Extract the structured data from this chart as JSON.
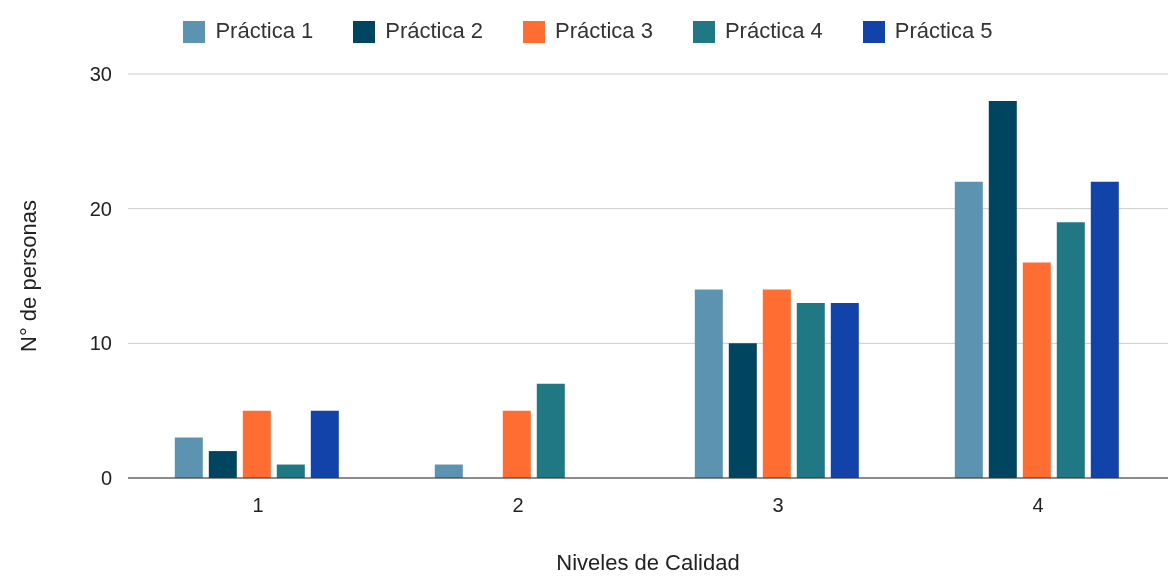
{
  "chart_data": {
    "type": "bar",
    "xlabel": "Niveles de Calidad",
    "ylabel": "N° de personas",
    "categories": [
      "1",
      "2",
      "3",
      "4"
    ],
    "series": [
      {
        "name": "Práctica 1",
        "color": "#5b93b0",
        "values": [
          3,
          1,
          14,
          22
        ]
      },
      {
        "name": "Práctica 2",
        "color": "#004560",
        "values": [
          2,
          0,
          10,
          28
        ]
      },
      {
        "name": "Práctica 3",
        "color": "#ff6d33",
        "values": [
          5,
          5,
          14,
          16
        ]
      },
      {
        "name": "Práctica 4",
        "color": "#1f7884",
        "values": [
          1,
          7,
          13,
          19
        ]
      },
      {
        "name": "Práctica 5",
        "color": "#1143a8",
        "values": [
          5,
          0,
          13,
          22
        ]
      }
    ],
    "ylim": [
      0,
      30
    ],
    "yticks": [
      0,
      10,
      20,
      30
    ],
    "grid": "y",
    "legend": "top"
  }
}
